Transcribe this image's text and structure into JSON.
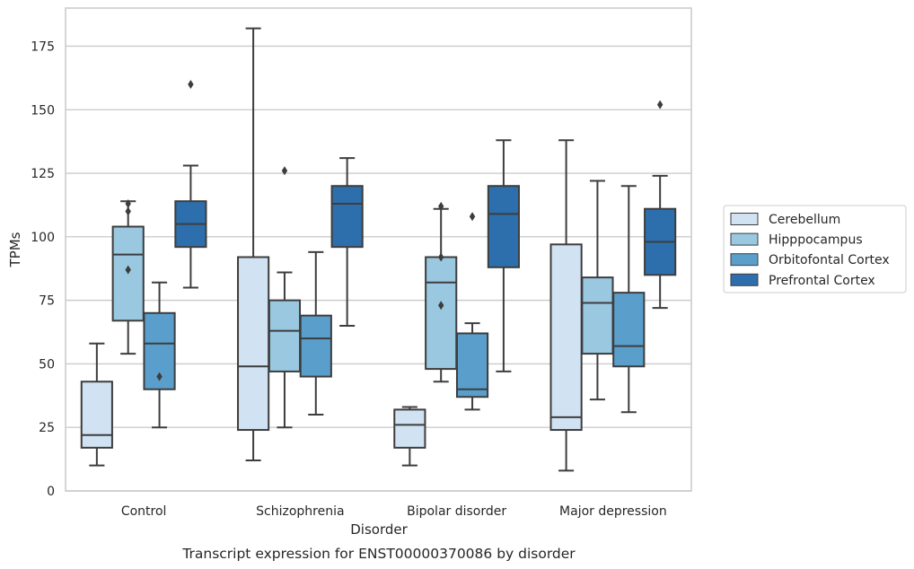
{
  "chart_data": {
    "type": "box",
    "xlabel": "Disorder",
    "ylabel": "TPMs",
    "caption": "Transcript expression for ENST00000370086 by disorder",
    "ylim": [
      0,
      190
    ],
    "yticks": [
      0,
      25,
      50,
      75,
      100,
      125,
      150,
      175
    ],
    "grid": true,
    "legend_position": "right",
    "categories": [
      "Control",
      "Schizophrenia",
      "Bipolar disorder",
      "Major depression"
    ],
    "series": [
      {
        "name": "Cerebellum",
        "color": "#d1e2f2",
        "boxes": [
          {
            "whisker_low": 10,
            "q1": 17,
            "median": 22,
            "q3": 43,
            "whisker_high": 58,
            "outliers": []
          },
          {
            "whisker_low": 12,
            "q1": 24,
            "median": 49,
            "q3": 92,
            "whisker_high": 182,
            "outliers": []
          },
          {
            "whisker_low": 10,
            "q1": 17,
            "median": 26,
            "q3": 32,
            "whisker_high": 33,
            "outliers": []
          },
          {
            "whisker_low": 8,
            "q1": 24,
            "median": 29,
            "q3": 97,
            "whisker_high": 138,
            "outliers": []
          }
        ]
      },
      {
        "name": "Hipppocampus",
        "color": "#9ac8e0",
        "boxes": [
          {
            "whisker_low": 54,
            "q1": 67,
            "median": 93,
            "q3": 104,
            "whisker_high": 114,
            "outliers": [
              113,
              110,
              87
            ]
          },
          {
            "whisker_low": 25,
            "q1": 47,
            "median": 63,
            "q3": 75,
            "whisker_high": 86,
            "outliers": [
              126
            ]
          },
          {
            "whisker_low": 43,
            "q1": 48,
            "median": 82,
            "q3": 92,
            "whisker_high": 111,
            "outliers": [
              112,
              92,
              73
            ]
          },
          {
            "whisker_low": 36,
            "q1": 54,
            "median": 74,
            "q3": 84,
            "whisker_high": 122,
            "outliers": []
          }
        ]
      },
      {
        "name": "Orbitofontal Cortex",
        "color": "#5a9fcc",
        "boxes": [
          {
            "whisker_low": 25,
            "q1": 40,
            "median": 58,
            "q3": 70,
            "whisker_high": 82,
            "outliers": [
              45
            ]
          },
          {
            "whisker_low": 30,
            "q1": 45,
            "median": 60,
            "q3": 69,
            "whisker_high": 94,
            "outliers": []
          },
          {
            "whisker_low": 32,
            "q1": 37,
            "median": 40,
            "q3": 62,
            "whisker_high": 66,
            "outliers": [
              108
            ]
          },
          {
            "whisker_low": 31,
            "q1": 49,
            "median": 57,
            "q3": 78,
            "whisker_high": 120,
            "outliers": []
          }
        ]
      },
      {
        "name": "Prefrontal Cortex",
        "color": "#2d6fad",
        "boxes": [
          {
            "whisker_low": 80,
            "q1": 96,
            "median": 105,
            "q3": 114,
            "whisker_high": 128,
            "outliers": [
              160
            ]
          },
          {
            "whisker_low": 65,
            "q1": 96,
            "median": 113,
            "q3": 120,
            "whisker_high": 131,
            "outliers": []
          },
          {
            "whisker_low": 47,
            "q1": 88,
            "median": 109,
            "q3": 120,
            "whisker_high": 138,
            "outliers": []
          },
          {
            "whisker_low": 72,
            "q1": 85,
            "median": 98,
            "q3": 111,
            "whisker_high": 124,
            "outliers": [
              152
            ]
          }
        ]
      }
    ]
  }
}
